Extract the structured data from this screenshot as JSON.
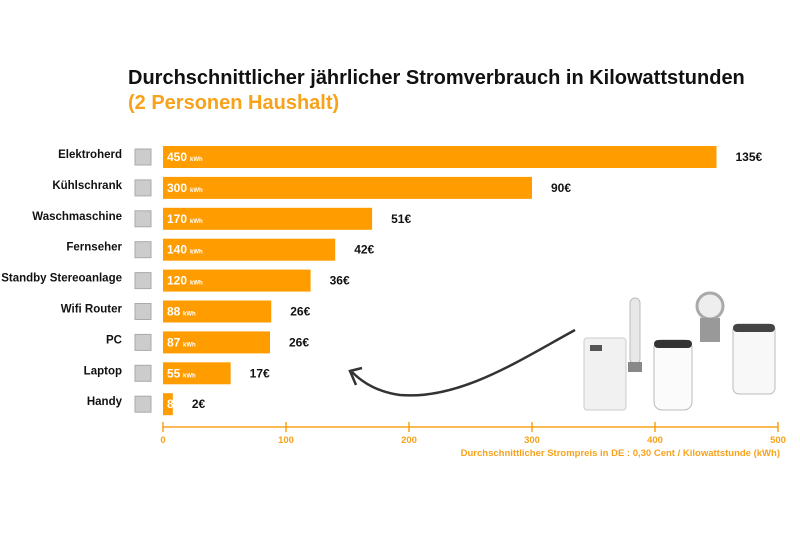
{
  "chart_data": {
    "type": "bar",
    "orientation": "horizontal",
    "title": "Durchschnittlicher jährlicher Stromverbrauch in Kilowattstunden",
    "subtitle": "(2 Personen Haushalt)",
    "xlabel": "Durchschnittlicher Strompreis in DE : 0,30 Cent / Kilowattstunde (kWh)",
    "xlim": [
      0,
      500
    ],
    "xticks": [
      0,
      100,
      200,
      300,
      400,
      500
    ],
    "unit": "kWh",
    "categories": [
      "Elektroherd",
      "Kühlschrank",
      "Waschmaschine",
      "Fernseher",
      "Standby Stereoanlage",
      "Wifi Router",
      "PC",
      "Laptop",
      "Handy"
    ],
    "icons": [
      "stove-icon",
      "fridge-icon",
      "washing-machine-icon",
      "tv-icon",
      "stereo-icon",
      "router-icon",
      "pc-icon",
      "laptop-icon",
      "phone-icon"
    ],
    "values": [
      450,
      300,
      170,
      140,
      120,
      88,
      87,
      55,
      8
    ],
    "value_labels": [
      "450",
      "300",
      "170",
      "140",
      "120",
      "88",
      "87",
      "55",
      "8"
    ],
    "show_unit": [
      true,
      true,
      true,
      true,
      true,
      true,
      true,
      true,
      false
    ],
    "costs": [
      "135€",
      "90€",
      "51€",
      "42€",
      "36€",
      "26€",
      "26€",
      "17€",
      "2€"
    ],
    "bar_color": "#ff9c00",
    "axis_color": "#f7a21b",
    "grid": false
  }
}
